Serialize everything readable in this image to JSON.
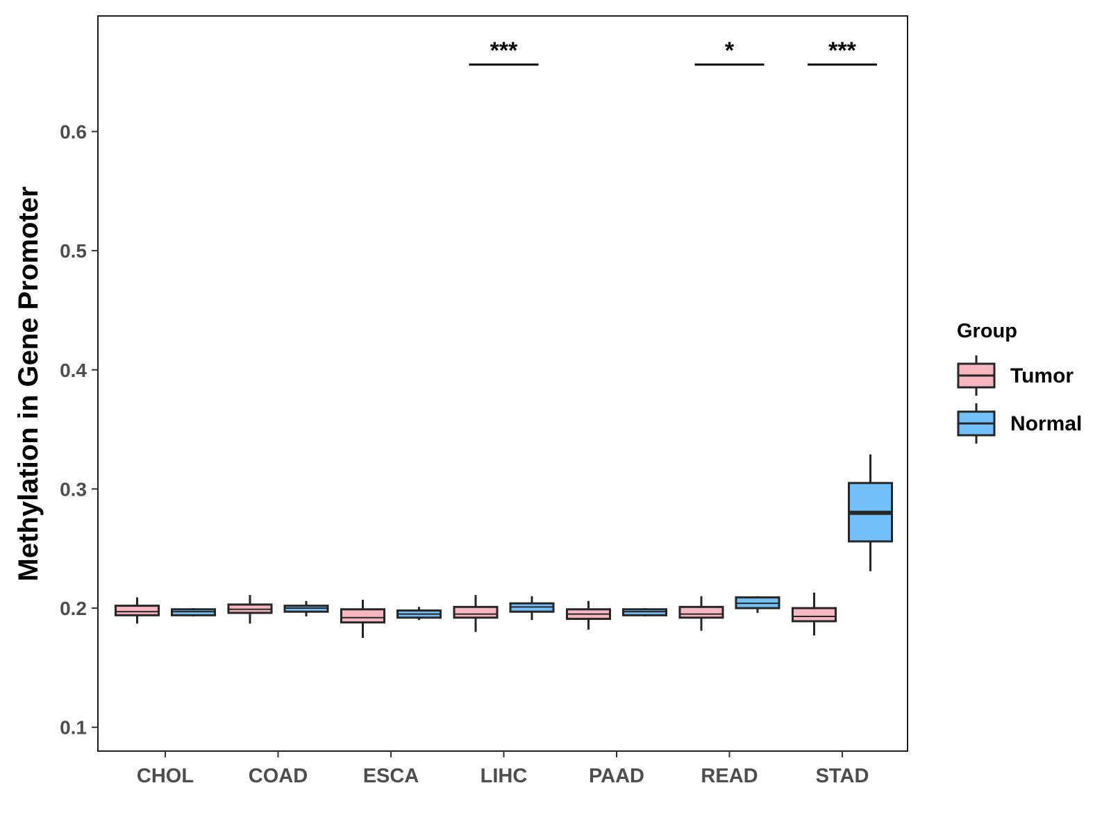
{
  "chart_data": {
    "type": "boxplot",
    "title": "",
    "xlabel": "",
    "ylabel": "Methylation in Gene Promoter",
    "ylim": [
      0.08,
      0.697
    ],
    "yticks": [
      0.1,
      0.2,
      0.3,
      0.4,
      0.5,
      0.6
    ],
    "ytick_labels": [
      "0.1",
      "0.2",
      "0.3",
      "0.4",
      "0.5",
      "0.6"
    ],
    "categories": [
      "CHOL",
      "COAD",
      "ESCA",
      "LIHC",
      "PAAD",
      "READ",
      "STAD"
    ],
    "legend": {
      "title": "Group",
      "position": "right",
      "entries": [
        {
          "label": "Tumor",
          "color": "#F7B6C2"
        },
        {
          "label": "Normal",
          "color": "#74C0F8"
        }
      ]
    },
    "series": [
      {
        "name": "Tumor",
        "color": "#F7B6C2",
        "boxes": [
          {
            "category": "CHOL",
            "whisker_low": 0.187,
            "q1": 0.194,
            "median": 0.197,
            "q3": 0.202,
            "whisker_high": 0.209
          },
          {
            "category": "COAD",
            "whisker_low": 0.187,
            "q1": 0.196,
            "median": 0.199,
            "q3": 0.203,
            "whisker_high": 0.211
          },
          {
            "category": "ESCA",
            "whisker_low": 0.175,
            "q1": 0.188,
            "median": 0.192,
            "q3": 0.199,
            "whisker_high": 0.207
          },
          {
            "category": "LIHC",
            "whisker_low": 0.18,
            "q1": 0.192,
            "median": 0.195,
            "q3": 0.201,
            "whisker_high": 0.211
          },
          {
            "category": "PAAD",
            "whisker_low": 0.182,
            "q1": 0.191,
            "median": 0.195,
            "q3": 0.199,
            "whisker_high": 0.206
          },
          {
            "category": "READ",
            "whisker_low": 0.181,
            "q1": 0.192,
            "median": 0.195,
            "q3": 0.201,
            "whisker_high": 0.21
          },
          {
            "category": "STAD",
            "whisker_low": 0.177,
            "q1": 0.189,
            "median": 0.193,
            "q3": 0.2,
            "whisker_high": 0.213
          }
        ]
      },
      {
        "name": "Normal",
        "color": "#74C0F8",
        "boxes": [
          {
            "category": "CHOL",
            "whisker_low": 0.193,
            "q1": 0.194,
            "median": 0.197,
            "q3": 0.199,
            "whisker_high": 0.2
          },
          {
            "category": "COAD",
            "whisker_low": 0.193,
            "q1": 0.197,
            "median": 0.2,
            "q3": 0.202,
            "whisker_high": 0.206
          },
          {
            "category": "ESCA",
            "whisker_low": 0.19,
            "q1": 0.192,
            "median": 0.195,
            "q3": 0.198,
            "whisker_high": 0.201
          },
          {
            "category": "LIHC",
            "whisker_low": 0.19,
            "q1": 0.197,
            "median": 0.201,
            "q3": 0.204,
            "whisker_high": 0.21
          },
          {
            "category": "PAAD",
            "whisker_low": 0.193,
            "q1": 0.194,
            "median": 0.197,
            "q3": 0.199,
            "whisker_high": 0.2
          },
          {
            "category": "READ",
            "whisker_low": 0.196,
            "q1": 0.2,
            "median": 0.204,
            "q3": 0.209,
            "whisker_high": 0.21
          },
          {
            "category": "STAD",
            "whisker_low": 0.231,
            "q1": 0.256,
            "median": 0.28,
            "q3": 0.305,
            "whisker_high": 0.329
          }
        ]
      }
    ],
    "annotations": [
      {
        "category": "LIHC",
        "label": "***"
      },
      {
        "category": "READ",
        "label": "*"
      },
      {
        "category": "STAD",
        "label": "***"
      }
    ],
    "grid": false
  }
}
